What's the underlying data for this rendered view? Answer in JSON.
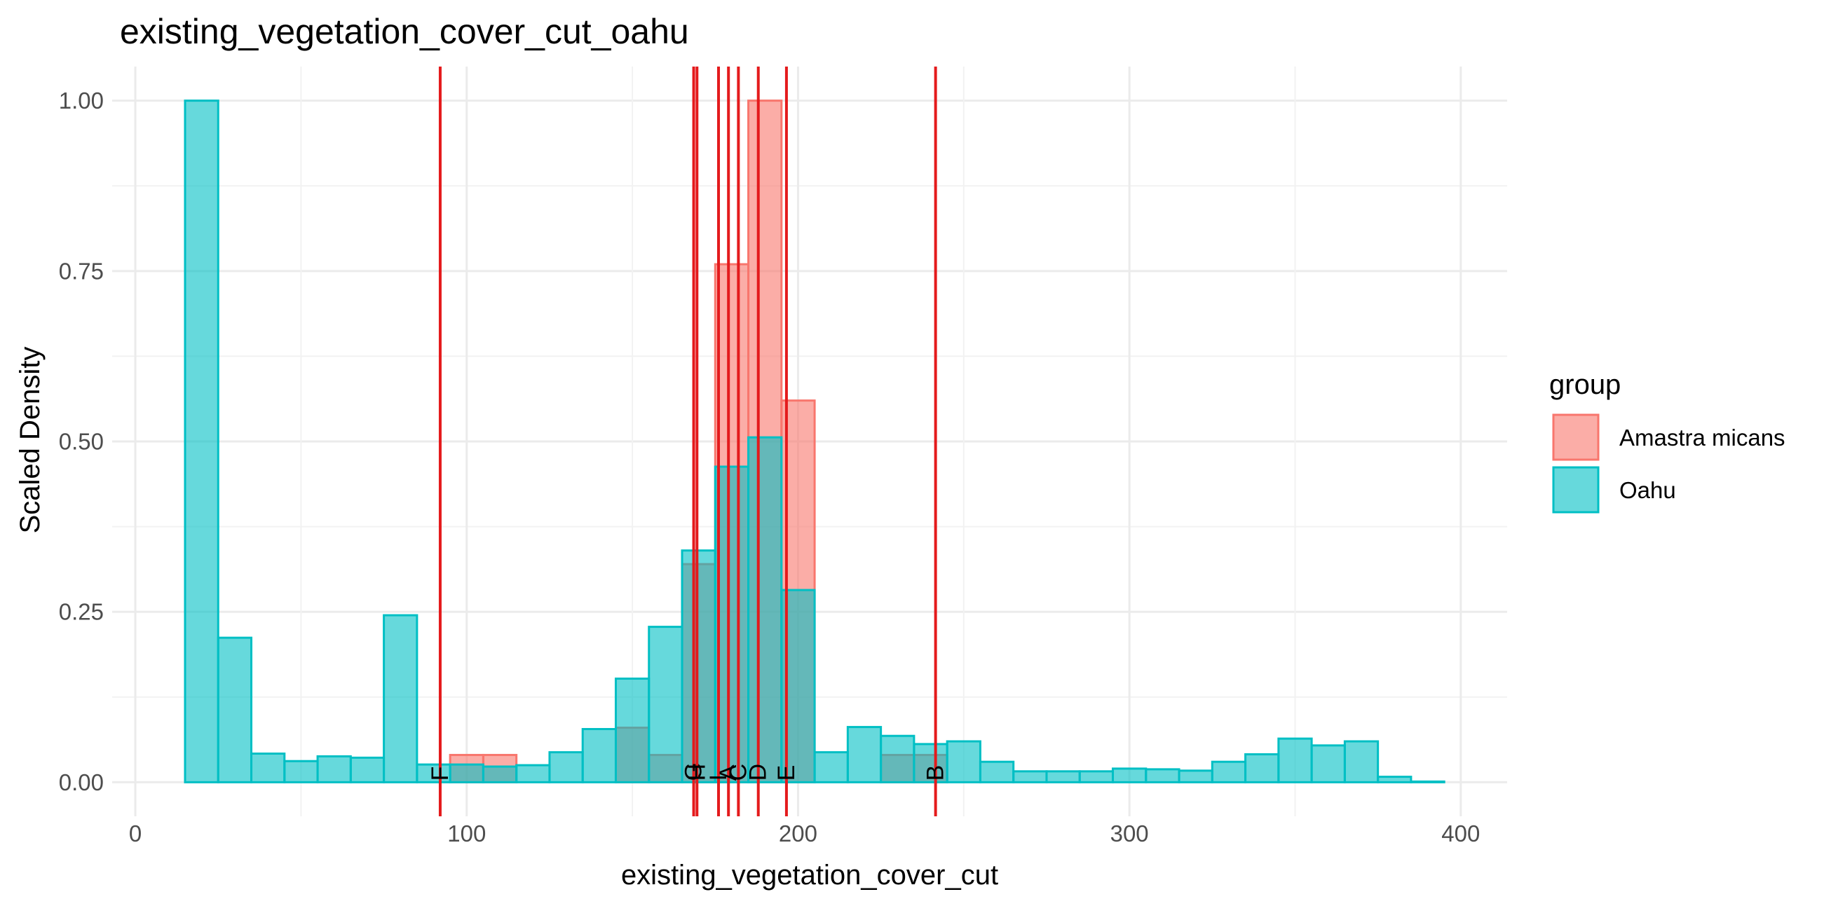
{
  "chart_data": {
    "type": "histogram",
    "title": "existing_vegetation_cover_cut_oahu",
    "xlabel": "existing_vegetation_cover_cut",
    "ylabel": "Scaled Density",
    "xlim": [
      -7,
      414
    ],
    "ylim": [
      -0.05,
      1.05
    ],
    "x_ticks": [
      0,
      100,
      200,
      300,
      400
    ],
    "y_ticks": [
      0.0,
      0.25,
      0.5,
      0.75,
      1.0
    ],
    "y_tick_labels": [
      "0.00",
      "0.25",
      "0.50",
      "0.75",
      "1.00"
    ],
    "bin_width": 10,
    "grid": true,
    "legend": {
      "title": "group",
      "placement": "right",
      "entries": [
        "Amastra micans",
        "Oahu"
      ]
    },
    "series": [
      {
        "name": "Amastra micans",
        "color": "#F8766D",
        "bins": [
          {
            "x0": 95,
            "x1": 105,
            "y": 0.04
          },
          {
            "x0": 105,
            "x1": 115,
            "y": 0.04
          },
          {
            "x0": 145,
            "x1": 155,
            "y": 0.08
          },
          {
            "x0": 155,
            "x1": 165,
            "y": 0.04
          },
          {
            "x0": 165,
            "x1": 175,
            "y": 0.32
          },
          {
            "x0": 175,
            "x1": 185,
            "y": 0.76
          },
          {
            "x0": 185,
            "x1": 195,
            "y": 1.0
          },
          {
            "x0": 195,
            "x1": 205,
            "y": 0.56
          },
          {
            "x0": 225,
            "x1": 235,
            "y": 0.04
          },
          {
            "x0": 235,
            "x1": 245,
            "y": 0.04
          }
        ]
      },
      {
        "name": "Oahu",
        "color": "#00BFC4",
        "bins": [
          {
            "x0": 15,
            "x1": 25,
            "y": 1.0
          },
          {
            "x0": 25,
            "x1": 35,
            "y": 0.212
          },
          {
            "x0": 35,
            "x1": 45,
            "y": 0.042
          },
          {
            "x0": 45,
            "x1": 55,
            "y": 0.031
          },
          {
            "x0": 55,
            "x1": 65,
            "y": 0.038
          },
          {
            "x0": 65,
            "x1": 75,
            "y": 0.036
          },
          {
            "x0": 75,
            "x1": 85,
            "y": 0.245
          },
          {
            "x0": 85,
            "x1": 95,
            "y": 0.026
          },
          {
            "x0": 95,
            "x1": 105,
            "y": 0.026
          },
          {
            "x0": 105,
            "x1": 115,
            "y": 0.023
          },
          {
            "x0": 115,
            "x1": 125,
            "y": 0.025
          },
          {
            "x0": 125,
            "x1": 135,
            "y": 0.044
          },
          {
            "x0": 135,
            "x1": 145,
            "y": 0.078
          },
          {
            "x0": 145,
            "x1": 155,
            "y": 0.152
          },
          {
            "x0": 155,
            "x1": 165,
            "y": 0.228
          },
          {
            "x0": 165,
            "x1": 175,
            "y": 0.34
          },
          {
            "x0": 175,
            "x1": 185,
            "y": 0.463
          },
          {
            "x0": 185,
            "x1": 195,
            "y": 0.506
          },
          {
            "x0": 195,
            "x1": 205,
            "y": 0.282
          },
          {
            "x0": 205,
            "x1": 215,
            "y": 0.044
          },
          {
            "x0": 215,
            "x1": 225,
            "y": 0.081
          },
          {
            "x0": 225,
            "x1": 235,
            "y": 0.068
          },
          {
            "x0": 235,
            "x1": 245,
            "y": 0.056
          },
          {
            "x0": 245,
            "x1": 255,
            "y": 0.06
          },
          {
            "x0": 255,
            "x1": 265,
            "y": 0.03
          },
          {
            "x0": 265,
            "x1": 275,
            "y": 0.016
          },
          {
            "x0": 275,
            "x1": 285,
            "y": 0.016
          },
          {
            "x0": 285,
            "x1": 295,
            "y": 0.016
          },
          {
            "x0": 295,
            "x1": 305,
            "y": 0.02
          },
          {
            "x0": 305,
            "x1": 315,
            "y": 0.019
          },
          {
            "x0": 315,
            "x1": 325,
            "y": 0.017
          },
          {
            "x0": 325,
            "x1": 335,
            "y": 0.03
          },
          {
            "x0": 335,
            "x1": 345,
            "y": 0.041
          },
          {
            "x0": 345,
            "x1": 355,
            "y": 0.064
          },
          {
            "x0": 355,
            "x1": 365,
            "y": 0.054
          },
          {
            "x0": 365,
            "x1": 375,
            "y": 0.06
          },
          {
            "x0": 375,
            "x1": 385,
            "y": 0.008
          },
          {
            "x0": 385,
            "x1": 395,
            "y": 0.001
          }
        ]
      }
    ],
    "vlines": {
      "color": "#E41A1C",
      "lines": [
        {
          "label": "F",
          "x": 92
        },
        {
          "label": "G",
          "x": 168.5
        },
        {
          "label": "H",
          "x": 169.5
        },
        {
          "label": "I",
          "x": 176
        },
        {
          "label": "A",
          "x": 179
        },
        {
          "label": "C",
          "x": 182
        },
        {
          "label": "D",
          "x": 188
        },
        {
          "label": "E",
          "x": 196.5
        },
        {
          "label": "B",
          "x": 241.5
        }
      ]
    }
  }
}
